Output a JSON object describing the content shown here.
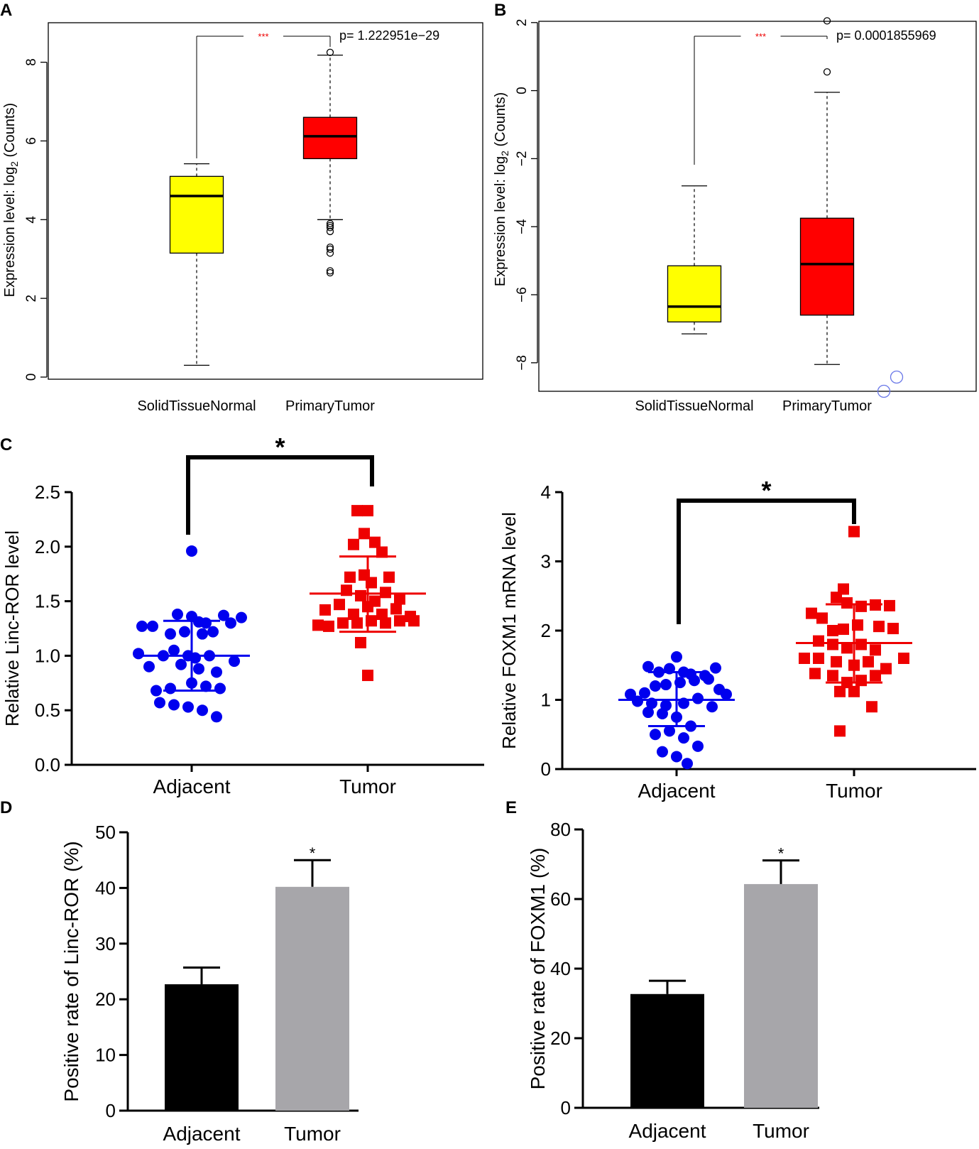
{
  "panel_labels": {
    "A": "A",
    "B": "B",
    "C": "C",
    "D": "D",
    "E": "E"
  },
  "chart_data": [
    {
      "id": "A",
      "type": "boxplot",
      "ylabel_prefix": "Expression level: log",
      "ylabel_sub": "2",
      "ylabel_suffix": " (Counts)",
      "categories": [
        "SolidTissueNormal",
        "PrimaryTumor"
      ],
      "yticks": [
        0,
        2,
        4,
        6,
        8
      ],
      "ylim": [
        0,
        9
      ],
      "boxes": [
        {
          "name": "SolidTissueNormal",
          "color": "#ffff00",
          "q1": 3.15,
          "median": 4.6,
          "q3": 5.1,
          "lower": 0.3,
          "upper": 5.42,
          "outliers": []
        },
        {
          "name": "PrimaryTumor",
          "color": "#ff0000",
          "q1": 5.55,
          "median": 6.12,
          "q3": 6.6,
          "lower": 4.0,
          "upper": 8.18,
          "outliers": [
            8.25,
            3.9,
            3.85,
            3.8,
            3.7,
            3.3,
            3.25,
            3.15,
            2.7,
            2.65
          ]
        }
      ],
      "significance": "***",
      "pvalue": "p= 1.222951e−29"
    },
    {
      "id": "B",
      "type": "boxplot",
      "ylabel_prefix": "Expression level: log",
      "ylabel_sub": "2",
      "ylabel_suffix": " (Counts)",
      "categories": [
        "SolidTissueNormal",
        "PrimaryTumor"
      ],
      "yticks": [
        -8,
        -6,
        -4,
        -2,
        0,
        2
      ],
      "yticklabels": [
        "−8",
        "−6",
        "−4",
        "−2",
        "0",
        "2"
      ],
      "ylim": [
        -8.4,
        2.6
      ],
      "boxes": [
        {
          "name": "SolidTissueNormal",
          "color": "#ffff00",
          "q1": -6.8,
          "median": -6.35,
          "q3": -5.15,
          "lower": -7.15,
          "upper": -2.8,
          "outliers": []
        },
        {
          "name": "PrimaryTumor",
          "color": "#ff0000",
          "q1": -6.6,
          "median": -5.1,
          "q3": -3.75,
          "lower": -8.05,
          "upper": -0.05,
          "outliers": [
            2.05,
            0.55
          ]
        }
      ],
      "significance": "***",
      "pvalue": "p= 0.0001855969"
    },
    {
      "id": "C1",
      "type": "scatter",
      "ylabel": "Relative Linc-ROR level",
      "categories": [
        "Adjacent",
        "Tumor"
      ],
      "yticks": [
        0.0,
        0.5,
        1.0,
        1.5,
        2.0,
        2.5
      ],
      "yticklabels": [
        "0.0",
        "0.5",
        "1.0",
        "1.5",
        "2.0",
        "2.5"
      ],
      "ylim": [
        0,
        2.5
      ],
      "significance": "*",
      "groups": [
        {
          "name": "Adjacent",
          "color": "#0000ee",
          "marker": "circle",
          "mean": 1.0,
          "sd_low": 0.68,
          "sd_high": 1.32,
          "points": [
            [
              0,
              1.96
            ],
            [
              -70,
              1.27
            ],
            [
              -55,
              1.27
            ],
            [
              -20,
              1.38
            ],
            [
              0,
              1.36
            ],
            [
              10,
              1.31
            ],
            [
              20,
              1.3
            ],
            [
              45,
              1.37
            ],
            [
              70,
              1.35
            ],
            [
              55,
              1.3
            ],
            [
              -30,
              1.2
            ],
            [
              -10,
              1.22
            ],
            [
              15,
              1.2
            ],
            [
              30,
              1.22
            ],
            [
              -75,
              1.02
            ],
            [
              -40,
              1.0
            ],
            [
              -25,
              1.05
            ],
            [
              -5,
              1.0
            ],
            [
              5,
              0.98
            ],
            [
              25,
              1.0
            ],
            [
              60,
              0.95
            ],
            [
              -60,
              0.9
            ],
            [
              -15,
              0.92
            ],
            [
              10,
              0.88
            ],
            [
              35,
              0.85
            ],
            [
              -50,
              0.68
            ],
            [
              -30,
              0.7
            ],
            [
              0,
              0.75
            ],
            [
              20,
              0.72
            ],
            [
              40,
              0.7
            ],
            [
              -45,
              0.57
            ],
            [
              -25,
              0.55
            ],
            [
              -5,
              0.53
            ],
            [
              15,
              0.5
            ],
            [
              35,
              0.44
            ]
          ]
        },
        {
          "name": "Tumor",
          "color": "#ee0000",
          "marker": "square",
          "mean": 1.57,
          "sd_low": 1.22,
          "sd_high": 1.91,
          "points": [
            [
              -15,
              2.33
            ],
            [
              0,
              2.33
            ],
            [
              -5,
              2.12
            ],
            [
              10,
              2.04
            ],
            [
              -20,
              2.02
            ],
            [
              20,
              1.95
            ],
            [
              -25,
              1.72
            ],
            [
              -5,
              1.74
            ],
            [
              5,
              1.67
            ],
            [
              30,
              1.72
            ],
            [
              -30,
              1.6
            ],
            [
              -10,
              1.55
            ],
            [
              10,
              1.5
            ],
            [
              25,
              1.58
            ],
            [
              45,
              1.52
            ],
            [
              -60,
              1.42
            ],
            [
              -40,
              1.47
            ],
            [
              -20,
              1.38
            ],
            [
              0,
              1.45
            ],
            [
              20,
              1.38
            ],
            [
              40,
              1.43
            ],
            [
              60,
              1.36
            ],
            [
              -70,
              1.28
            ],
            [
              -55,
              1.27
            ],
            [
              -35,
              1.3
            ],
            [
              -15,
              1.3
            ],
            [
              5,
              1.32
            ],
            [
              25,
              1.3
            ],
            [
              45,
              1.32
            ],
            [
              65,
              1.32
            ],
            [
              -10,
              1.12
            ],
            [
              0,
              0.82
            ]
          ]
        }
      ]
    },
    {
      "id": "C2",
      "type": "scatter",
      "ylabel": "Relative FOXM1 mRNA level",
      "categories": [
        "Adjacent",
        "Tumor"
      ],
      "yticks": [
        0,
        1,
        2,
        3,
        4
      ],
      "yticklabels": [
        "0",
        "1",
        "2",
        "3",
        "4"
      ],
      "ylim": [
        0,
        4
      ],
      "significance": "*",
      "groups": [
        {
          "name": "Adjacent",
          "color": "#0000ee",
          "marker": "circle",
          "mean": 1.0,
          "sd_low": 0.62,
          "sd_high": 1.4,
          "points": [
            [
              0,
              1.62
            ],
            [
              -40,
              1.48
            ],
            [
              -25,
              1.4
            ],
            [
              -10,
              1.45
            ],
            [
              10,
              1.4
            ],
            [
              20,
              1.37
            ],
            [
              40,
              1.35
            ],
            [
              55,
              1.46
            ],
            [
              -65,
              1.08
            ],
            [
              -45,
              1.1
            ],
            [
              -30,
              1.2
            ],
            [
              -15,
              1.22
            ],
            [
              5,
              1.25
            ],
            [
              25,
              1.28
            ],
            [
              45,
              1.3
            ],
            [
              60,
              1.15
            ],
            [
              -55,
              0.98
            ],
            [
              -35,
              0.95
            ],
            [
              -15,
              0.92
            ],
            [
              10,
              0.95
            ],
            [
              30,
              1.02
            ],
            [
              50,
              0.9
            ],
            [
              70,
              1.08
            ],
            [
              -40,
              0.82
            ],
            [
              -20,
              0.8
            ],
            [
              0,
              0.75
            ],
            [
              20,
              0.62
            ],
            [
              -30,
              0.5
            ],
            [
              -10,
              0.55
            ],
            [
              10,
              0.45
            ],
            [
              30,
              0.33
            ],
            [
              -20,
              0.25
            ],
            [
              0,
              0.18
            ],
            [
              15,
              0.08
            ]
          ]
        },
        {
          "name": "Tumor",
          "color": "#ee0000",
          "marker": "square",
          "mean": 1.82,
          "sd_low": 1.25,
          "sd_high": 2.38,
          "points": [
            [
              0,
              3.43
            ],
            [
              -15,
              2.6
            ],
            [
              -25,
              2.48
            ],
            [
              -10,
              2.4
            ],
            [
              10,
              2.35
            ],
            [
              30,
              2.37
            ],
            [
              50,
              2.36
            ],
            [
              -60,
              2.25
            ],
            [
              -45,
              2.18
            ],
            [
              -30,
              2.0
            ],
            [
              -15,
              2.02
            ],
            [
              5,
              2.08
            ],
            [
              35,
              2.06
            ],
            [
              55,
              2.03
            ],
            [
              -50,
              1.85
            ],
            [
              -30,
              1.8
            ],
            [
              -10,
              1.75
            ],
            [
              10,
              1.8
            ],
            [
              30,
              1.72
            ],
            [
              -70,
              1.6
            ],
            [
              -50,
              1.6
            ],
            [
              -25,
              1.55
            ],
            [
              0,
              1.5
            ],
            [
              20,
              1.55
            ],
            [
              45,
              1.45
            ],
            [
              70,
              1.6
            ],
            [
              -55,
              1.38
            ],
            [
              -30,
              1.35
            ],
            [
              -10,
              1.25
            ],
            [
              10,
              1.28
            ],
            [
              30,
              1.35
            ],
            [
              -20,
              1.12
            ],
            [
              0,
              1.12
            ],
            [
              25,
              0.9
            ],
            [
              -20,
              0.55
            ]
          ]
        }
      ]
    },
    {
      "id": "D",
      "type": "bar",
      "ylabel": "Positive rate of Linc-ROR (%)",
      "categories": [
        "Adjacent",
        "Tumor"
      ],
      "values": [
        22.7,
        40.2
      ],
      "errors": [
        3.0,
        4.8
      ],
      "colors": [
        "#000000",
        "#a7a6aa"
      ],
      "yticks": [
        0,
        10,
        20,
        30,
        40,
        50
      ],
      "ylim": [
        0,
        50
      ],
      "significance": "*"
    },
    {
      "id": "E",
      "type": "bar",
      "ylabel": "Positive rate of FOXM1 (%)",
      "categories": [
        "Adjacent",
        "Tumor"
      ],
      "values": [
        32.7,
        64.3
      ],
      "errors": [
        3.8,
        6.8
      ],
      "colors": [
        "#000000",
        "#a7a6aa"
      ],
      "yticks": [
        0,
        20,
        40,
        60,
        80
      ],
      "ylim": [
        0,
        80
      ],
      "significance": "*"
    }
  ]
}
